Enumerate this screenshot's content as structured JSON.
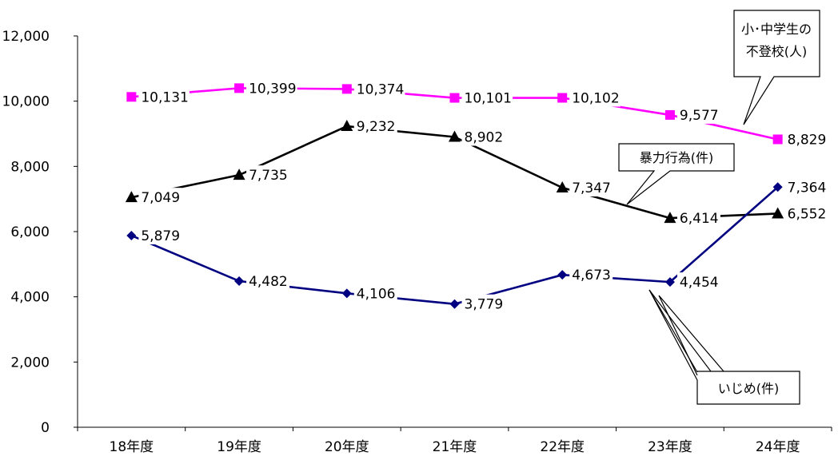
{
  "chart_data": {
    "type": "line",
    "categories": [
      "18年度",
      "19年度",
      "20年度",
      "21年度",
      "22年度",
      "23年度",
      "24年度"
    ],
    "ylim": [
      0,
      12000
    ],
    "yticks": [
      0,
      2000,
      4000,
      6000,
      8000,
      10000,
      12000
    ],
    "ytick_labels": [
      "0",
      "2,000",
      "4,000",
      "6,000",
      "8,000",
      "10,000",
      "12,000"
    ],
    "grid": false,
    "series": [
      {
        "key": "futoko",
        "name": "小･中学生の不登校(人)",
        "callout_lines": [
          "小･中学生の",
          "不登校(人)"
        ],
        "color": "#ff00ff",
        "marker": "square",
        "values": [
          10131,
          10399,
          10374,
          10101,
          10102,
          9577,
          8829
        ],
        "labels": [
          "10,131",
          "10,399",
          "10,374",
          "10,101",
          "10,102",
          "9,577",
          "8,829"
        ]
      },
      {
        "key": "boryoku",
        "name": "暴力行為(件)",
        "callout_lines": [
          "暴力行為(件)"
        ],
        "color": "#000000",
        "marker": "triangle",
        "values": [
          7049,
          7735,
          9232,
          8902,
          7347,
          6414,
          6552
        ],
        "labels": [
          "7,049",
          "7,735",
          "9,232",
          "8,902",
          "7,347",
          "6,414",
          "6,552"
        ]
      },
      {
        "key": "ijime",
        "name": "いじめ(件)",
        "callout_lines": [
          "いじめ(件)"
        ],
        "color": "#000080",
        "marker": "diamond",
        "values": [
          5879,
          4482,
          4106,
          3779,
          4673,
          4454,
          7364
        ],
        "labels": [
          "5,879",
          "4,482",
          "4,106",
          "3,779",
          "4,673",
          "4,454",
          "7,364"
        ]
      }
    ]
  }
}
